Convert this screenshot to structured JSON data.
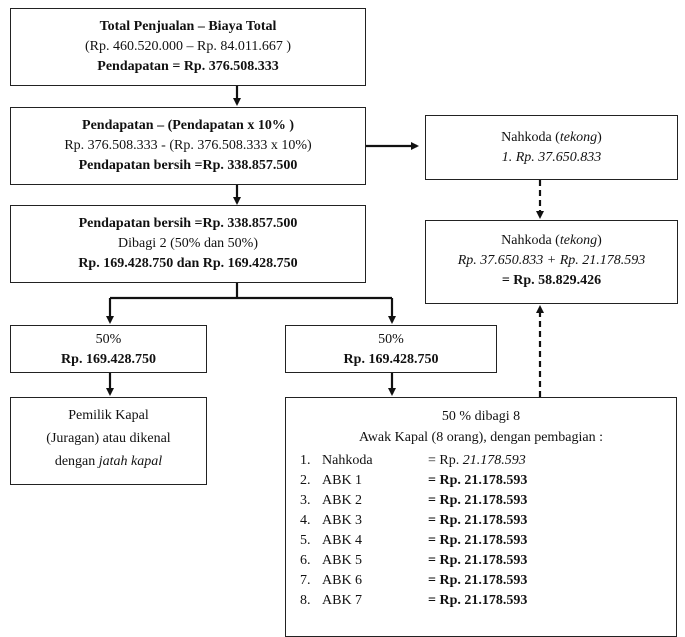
{
  "total": {
    "line1": "Total Penjualan – Biaya Total",
    "line2": "(Rp. 460.520.000 – Rp. 84.011.667 )",
    "line3": "Pendapatan = Rp. 376.508.333"
  },
  "net": {
    "line1": "Pendapatan – (Pendapatan x 10% )",
    "line2": "Rp. 376.508.333 - (Rp. 376.508.333 x 10%)",
    "line3": "Pendapatan bersih =Rp. 338.857.500"
  },
  "split": {
    "line1": "Pendapatan bersih =Rp. 338.857.500",
    "line2": "Dibagi 2 (50% dan 50%)",
    "line3": "Rp. 169.428.750 dan Rp. 169.428.750"
  },
  "nahkoda1": {
    "name": "Nahkoda (",
    "italic": "tekong",
    "close": ")",
    "line2": "1. Rp. 37.650.833"
  },
  "nahkoda2": {
    "name": "Nahkoda (",
    "italic": "tekong",
    "close": ")",
    "line2": "Rp. 37.650.833 + Rp. 21.178.593",
    "line3": "= Rp. 58.829.426"
  },
  "half_left": {
    "line1": "50%",
    "line2": "Rp. 169.428.750"
  },
  "half_right": {
    "line1": "50%",
    "line2": "Rp. 169.428.750"
  },
  "owner": {
    "line1": "Pemilik Kapal",
    "line2": "(Juragan) atau dikenal",
    "line3a": "dengan ",
    "line3b": "jatah kapal"
  },
  "crew": {
    "line1": "50 % dibagi 8",
    "line2": "Awak Kapal (8 orang), dengan pembagian :",
    "items": [
      {
        "num": "1.",
        "name": "Nahkoda",
        "prefix": "= Rp.",
        "amount": "21.178.593"
      },
      {
        "num": "2.",
        "name": "ABK 1",
        "prefix": "= Rp.",
        "amount": "21.178.593"
      },
      {
        "num": "3.",
        "name": "ABK 2",
        "prefix": "= Rp.",
        "amount": "21.178.593"
      },
      {
        "num": "4.",
        "name": "ABK 3",
        "prefix": "= Rp.",
        "amount": "21.178.593"
      },
      {
        "num": "5.",
        "name": "ABK 4",
        "prefix": "= Rp.",
        "amount": "21.178.593"
      },
      {
        "num": "6.",
        "name": "ABK 5",
        "prefix": "= Rp.",
        "amount": "21.178.593"
      },
      {
        "num": "7.",
        "name": "ABK 6",
        "prefix": "= Rp.",
        "amount": "21.178.593"
      },
      {
        "num": "8.",
        "name": "ABK 7",
        "prefix": "= Rp.",
        "amount": "21.178.593"
      }
    ]
  }
}
